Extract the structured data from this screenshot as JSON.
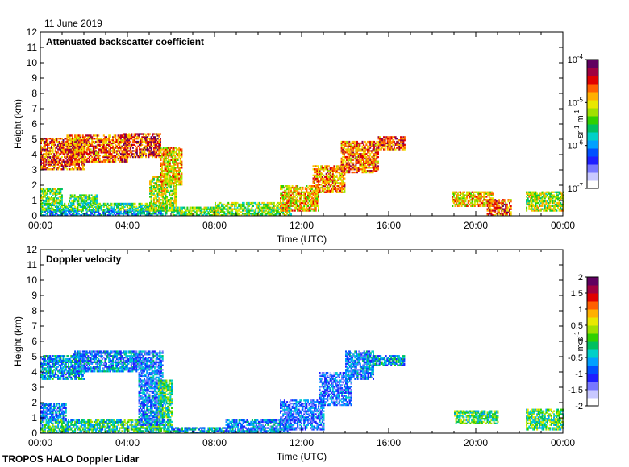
{
  "date_label": "11 June 2019",
  "footer": "TROPOS HALO Doppler Lidar",
  "colors": {
    "palette": [
      "#ffffff",
      "#c8c8ff",
      "#7878ff",
      "#1e1eff",
      "#0050ff",
      "#00a0ff",
      "#00d0c8",
      "#00c060",
      "#30d000",
      "#a0e000",
      "#e8e800",
      "#ffb000",
      "#ff6000",
      "#e00000",
      "#a00040",
      "#600060"
    ]
  },
  "chart_data": [
    {
      "type": "heatmap",
      "title": "Attenuated backscatter coefficient",
      "xlabel": "Time (UTC)",
      "ylabel": "Height (km)",
      "xlim": [
        0,
        24
      ],
      "ylim": [
        0,
        12
      ],
      "x_ticks": [
        "00:00",
        "04:00",
        "08:00",
        "12:00",
        "16:00",
        "20:00",
        "00:00"
      ],
      "y_ticks": [
        "0",
        "1",
        "2",
        "3",
        "4",
        "5",
        "6",
        "7",
        "8",
        "9",
        "10",
        "11",
        "12"
      ],
      "colorbar": {
        "label_base": "sr",
        "label_exp1": "-1",
        "label_mid": " m",
        "label_exp2": "-1",
        "scale": "log",
        "range": [
          1e-07,
          0.0001
        ],
        "ticks": [
          {
            "base": "10",
            "exp": "-7"
          },
          {
            "base": "10",
            "exp": "-6"
          },
          {
            "base": "10",
            "exp": "-5"
          },
          {
            "base": "10",
            "exp": "-4"
          }
        ]
      },
      "regions": [
        {
          "t0": 0.0,
          "t1": 5.8,
          "h0": 0.0,
          "h1": 0.35,
          "v": 0.35
        },
        {
          "t0": 0.0,
          "t1": 5.8,
          "h0": 0.35,
          "h1": 0.8,
          "v": 0.5
        },
        {
          "t0": 0.0,
          "t1": 1.0,
          "h0": 0.8,
          "h1": 1.8,
          "v": 0.55
        },
        {
          "t0": 1.3,
          "t1": 2.6,
          "h0": 0.8,
          "h1": 1.4,
          "v": 0.5
        },
        {
          "t0": 5.0,
          "t1": 6.2,
          "h0": 0.3,
          "h1": 2.6,
          "v": 0.6
        },
        {
          "t0": 0.0,
          "t1": 2.0,
          "h0": 3.0,
          "h1": 5.0,
          "v": 0.82
        },
        {
          "t0": 1.2,
          "t1": 4.0,
          "h0": 3.5,
          "h1": 5.2,
          "v": 0.8
        },
        {
          "t0": 3.8,
          "t1": 5.5,
          "h0": 3.8,
          "h1": 5.3,
          "v": 0.85
        },
        {
          "t0": 5.5,
          "t1": 6.5,
          "h0": 2.0,
          "h1": 4.5,
          "v": 0.7
        },
        {
          "t0": 6.0,
          "t1": 8.0,
          "h0": 0.0,
          "h1": 0.6,
          "v": 0.55
        },
        {
          "t0": 8.0,
          "t1": 11.5,
          "h0": 0.0,
          "h1": 0.8,
          "v": 0.55
        },
        {
          "t0": 11.0,
          "t1": 12.8,
          "h0": 0.3,
          "h1": 2.0,
          "v": 0.7
        },
        {
          "t0": 12.5,
          "t1": 14.0,
          "h0": 1.5,
          "h1": 3.3,
          "v": 0.75
        },
        {
          "t0": 13.8,
          "t1": 15.5,
          "h0": 2.8,
          "h1": 4.8,
          "v": 0.78
        },
        {
          "t0": 15.5,
          "t1": 16.7,
          "h0": 4.3,
          "h1": 5.1,
          "v": 0.82
        },
        {
          "t0": 18.9,
          "t1": 20.8,
          "h0": 0.6,
          "h1": 1.6,
          "v": 0.7
        },
        {
          "t0": 20.5,
          "t1": 21.6,
          "h0": 0.0,
          "h1": 1.0,
          "v": 0.8
        },
        {
          "t0": 22.3,
          "t1": 24.0,
          "h0": 0.3,
          "h1": 1.6,
          "v": 0.6
        }
      ]
    },
    {
      "type": "heatmap",
      "title": "Doppler velocity",
      "xlabel": "Time (UTC)",
      "ylabel": "Height (km)",
      "xlim": [
        0,
        24
      ],
      "ylim": [
        0,
        12
      ],
      "x_ticks": [
        "00:00",
        "04:00",
        "08:00",
        "12:00",
        "16:00",
        "20:00",
        "00:00"
      ],
      "y_ticks": [
        "0",
        "1",
        "2",
        "3",
        "4",
        "5",
        "6",
        "7",
        "8",
        "9",
        "10",
        "11",
        "12"
      ],
      "colorbar": {
        "label_base": "m s",
        "label_exp1": "-1",
        "label_mid": "",
        "label_exp2": "",
        "scale": "linear",
        "range": [
          -2,
          2
        ],
        "ticks": [
          {
            "base": "-2",
            "exp": ""
          },
          {
            "base": "-1.5",
            "exp": ""
          },
          {
            "base": "-1",
            "exp": ""
          },
          {
            "base": "-0.5",
            "exp": ""
          },
          {
            "base": "0",
            "exp": ""
          },
          {
            "base": "0.5",
            "exp": ""
          },
          {
            "base": "1",
            "exp": ""
          },
          {
            "base": "1.5",
            "exp": ""
          },
          {
            "base": "2",
            "exp": ""
          }
        ]
      },
      "regions": [
        {
          "t0": 0.0,
          "t1": 6.0,
          "h0": 0.0,
          "h1": 0.8,
          "v": 0.45
        },
        {
          "t0": 0.0,
          "t1": 1.2,
          "h0": 0.8,
          "h1": 2.0,
          "v": 0.3
        },
        {
          "t0": 0.0,
          "t1": 2.0,
          "h0": 3.5,
          "h1": 5.0,
          "v": 0.35
        },
        {
          "t0": 1.5,
          "t1": 4.5,
          "h0": 4.0,
          "h1": 5.3,
          "v": 0.3
        },
        {
          "t0": 4.5,
          "t1": 5.6,
          "h0": 0.5,
          "h1": 5.3,
          "v": 0.28
        },
        {
          "t0": 5.4,
          "t1": 6.0,
          "h0": 1.0,
          "h1": 3.5,
          "v": 0.5
        },
        {
          "t0": 6.0,
          "t1": 8.5,
          "h0": 0.0,
          "h1": 0.4,
          "v": 0.35
        },
        {
          "t0": 8.5,
          "t1": 11.5,
          "h0": 0.0,
          "h1": 0.8,
          "v": 0.3
        },
        {
          "t0": 11.0,
          "t1": 13.0,
          "h0": 0.2,
          "h1": 2.2,
          "v": 0.25
        },
        {
          "t0": 12.8,
          "t1": 14.3,
          "h0": 1.8,
          "h1": 4.0,
          "v": 0.25
        },
        {
          "t0": 14.0,
          "t1": 15.3,
          "h0": 3.5,
          "h1": 5.3,
          "v": 0.28
        },
        {
          "t0": 15.0,
          "t1": 16.7,
          "h0": 4.4,
          "h1": 5.0,
          "v": 0.35
        },
        {
          "t0": 19.0,
          "t1": 21.0,
          "h0": 0.6,
          "h1": 1.5,
          "v": 0.5
        },
        {
          "t0": 22.3,
          "t1": 24.0,
          "h0": 0.2,
          "h1": 1.6,
          "v": 0.5
        }
      ]
    }
  ]
}
